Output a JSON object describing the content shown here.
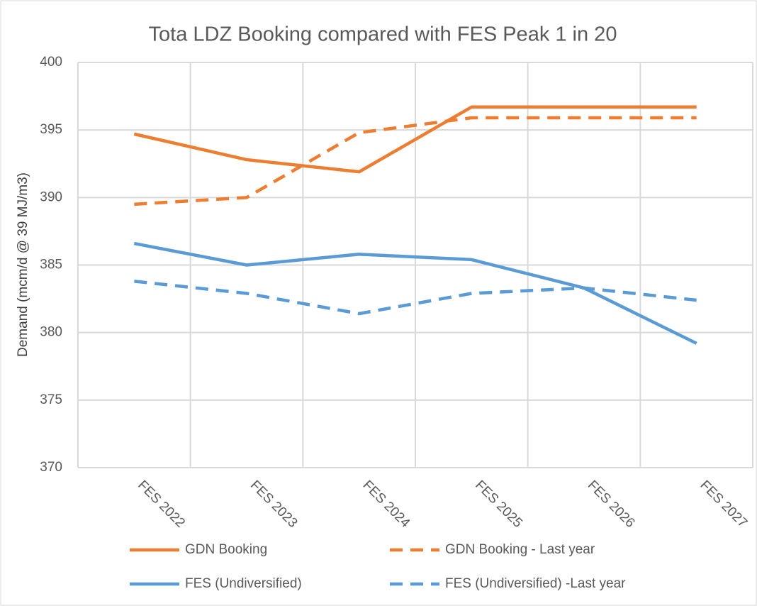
{
  "chart_data": {
    "type": "line",
    "title": "Tota LDZ Booking compared with FES Peak 1 in 20",
    "y_label": "Demand (mcm/d @ 39 MJ/m3)",
    "categories": [
      "FES 2022",
      "FES 2023",
      "FES 2024",
      "FES 2025",
      "FES 2026",
      "FES 2027"
    ],
    "series": [
      {
        "name": "GDN Booking",
        "color": "#ed7d31",
        "dashed": false,
        "values": [
          394.7,
          392.8,
          391.9,
          396.7,
          396.7,
          396.7
        ]
      },
      {
        "name": "GDN Booking - Last year",
        "color": "#ed7d31",
        "dashed": true,
        "values": [
          389.5,
          390.0,
          394.8,
          395.9,
          395.9,
          395.9
        ]
      },
      {
        "name": "FES (Undiversified)",
        "color": "#5b9bd5",
        "dashed": false,
        "values": [
          386.6,
          385.0,
          385.8,
          385.4,
          383.3,
          379.2
        ]
      },
      {
        "name": "FES (Undiversified) -Last year",
        "color": "#5b9bd5",
        "dashed": true,
        "values": [
          383.8,
          382.9,
          381.4,
          382.9,
          383.3,
          382.4
        ]
      }
    ],
    "ylim": [
      370,
      400
    ],
    "yticks": [
      370,
      375,
      380,
      385,
      390,
      395,
      400
    ],
    "grid": true
  }
}
